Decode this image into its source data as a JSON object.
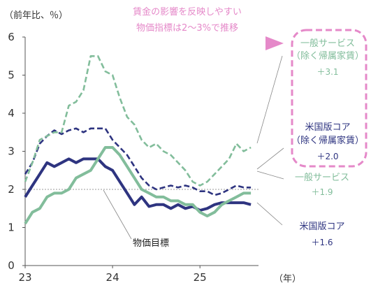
{
  "chart_data": {
    "type": "line",
    "y_unit_label": "（前年比、％）",
    "x_unit_label": "（年）",
    "ylim": [
      0,
      6
    ],
    "y_ticks": [
      "0",
      "1",
      "2",
      "3",
      "4",
      "5",
      "6"
    ],
    "x_ticks": [
      "23",
      "24",
      "25"
    ],
    "x_range": [
      2023.0,
      2025.67
    ],
    "grid": false,
    "headline": [
      "賃金の影響を反映しやすい",
      "物価指標は2〜3%で推移"
    ],
    "reference_line": {
      "value": 2.0,
      "label": "物価目標"
    },
    "series": [
      {
        "key": "us_core_ex_rent",
        "label_lines": [
          "米国版コア",
          "（除く帰属家賃）"
        ],
        "value_label": "＋2.0",
        "color": "#2e3480",
        "style": "dashed",
        "x": [
          2023.0,
          2023.083,
          2023.167,
          2023.25,
          2023.333,
          2023.417,
          2023.5,
          2023.583,
          2023.667,
          2023.75,
          2023.833,
          2023.917,
          2024.0,
          2024.083,
          2024.167,
          2024.25,
          2024.333,
          2024.417,
          2024.5,
          2024.583,
          2024.667,
          2024.75,
          2024.833,
          2024.917,
          2025.0,
          2025.083,
          2025.167,
          2025.25,
          2025.333,
          2025.417,
          2025.5,
          2025.583
        ],
        "y": [
          2.4,
          2.7,
          3.2,
          3.4,
          3.55,
          3.45,
          3.55,
          3.6,
          3.5,
          3.6,
          3.6,
          3.6,
          3.3,
          3.1,
          2.9,
          2.6,
          2.3,
          2.1,
          2.0,
          2.05,
          2.1,
          2.05,
          2.1,
          2.05,
          1.95,
          1.95,
          1.85,
          1.9,
          2.0,
          2.1,
          2.05,
          2.05
        ]
      },
      {
        "key": "general_services_ex_rent",
        "label_lines": [
          "一般サービス",
          "（除く帰属家賃）"
        ],
        "value_label": "＋3.1",
        "color": "#82bd9b",
        "style": "dashed",
        "x": [
          2023.0,
          2023.083,
          2023.167,
          2023.25,
          2023.333,
          2023.417,
          2023.5,
          2023.583,
          2023.667,
          2023.75,
          2023.833,
          2023.917,
          2024.0,
          2024.083,
          2024.167,
          2024.25,
          2024.333,
          2024.417,
          2024.5,
          2024.583,
          2024.667,
          2024.75,
          2024.833,
          2024.917,
          2025.0,
          2025.083,
          2025.167,
          2025.25,
          2025.333,
          2025.417,
          2025.5,
          2025.583
        ],
        "y": [
          2.2,
          2.7,
          3.3,
          3.4,
          3.5,
          3.5,
          4.2,
          4.3,
          4.6,
          5.5,
          5.5,
          5.1,
          5.0,
          4.4,
          3.9,
          3.7,
          3.3,
          3.1,
          3.2,
          3.0,
          2.9,
          2.7,
          2.5,
          2.2,
          2.1,
          2.2,
          2.4,
          2.6,
          2.8,
          3.2,
          3.0,
          3.1
        ]
      },
      {
        "key": "us_core",
        "label_lines": [
          "米国版コア"
        ],
        "value_label": "＋1.6",
        "color": "#2e3480",
        "style": "solid",
        "x": [
          2023.0,
          2023.083,
          2023.167,
          2023.25,
          2023.333,
          2023.417,
          2023.5,
          2023.583,
          2023.667,
          2023.75,
          2023.833,
          2023.917,
          2024.0,
          2024.083,
          2024.167,
          2024.25,
          2024.333,
          2024.417,
          2024.5,
          2024.583,
          2024.667,
          2024.75,
          2024.833,
          2024.917,
          2025.0,
          2025.083,
          2025.167,
          2025.25,
          2025.333,
          2025.417,
          2025.5,
          2025.583
        ],
        "y": [
          1.8,
          2.1,
          2.4,
          2.7,
          2.6,
          2.7,
          2.8,
          2.7,
          2.8,
          2.8,
          2.8,
          2.6,
          2.5,
          2.2,
          1.9,
          1.6,
          1.8,
          1.55,
          1.6,
          1.6,
          1.5,
          1.6,
          1.5,
          1.55,
          1.45,
          1.5,
          1.6,
          1.65,
          1.65,
          1.65,
          1.65,
          1.6
        ]
      },
      {
        "key": "general_services",
        "label_lines": [
          "一般サービス"
        ],
        "value_label": "＋1.9",
        "color": "#82bd9b",
        "style": "solid",
        "x": [
          2023.0,
          2023.083,
          2023.167,
          2023.25,
          2023.333,
          2023.417,
          2023.5,
          2023.583,
          2023.667,
          2023.75,
          2023.833,
          2023.917,
          2024.0,
          2024.083,
          2024.167,
          2024.25,
          2024.333,
          2024.417,
          2024.5,
          2024.583,
          2024.667,
          2024.75,
          2024.833,
          2024.917,
          2025.0,
          2025.083,
          2025.167,
          2025.25,
          2025.333,
          2025.417,
          2025.5,
          2025.583
        ],
        "y": [
          1.1,
          1.4,
          1.5,
          1.8,
          1.9,
          1.9,
          2.0,
          2.3,
          2.4,
          2.5,
          2.8,
          3.1,
          3.1,
          2.9,
          2.6,
          2.3,
          2.0,
          1.9,
          1.8,
          1.8,
          1.7,
          1.7,
          1.6,
          1.6,
          1.4,
          1.3,
          1.4,
          1.6,
          1.7,
          1.8,
          1.9,
          1.9
        ]
      }
    ]
  }
}
